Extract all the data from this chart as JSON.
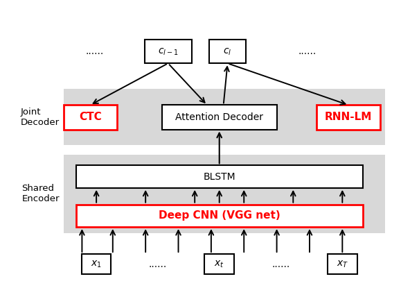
{
  "fig_width": 5.92,
  "fig_height": 4.28,
  "dpi": 100,
  "bg_color": "#ffffff",
  "gray_bg": "#d8d8d8",
  "box_face": "#ffffff",
  "red_edge": "#ff0000",
  "black_edge": "#000000",
  "red_text": "#ff0000",
  "black_text": "#000000",
  "label_joint": "Joint\nDecoder",
  "label_shared": "Shared\nEncoder",
  "label_ctc": "CTC",
  "label_attn": "Attention Decoder",
  "label_rnn": "RNN-LM",
  "label_blstm": "BLSTM",
  "label_cnn": "Deep CNN (VGG net)",
  "label_x1": "$x_1$",
  "label_xt": "$x_t$",
  "label_xT": "$x_T$",
  "label_cl1": "$c_{l-1}$",
  "label_cl": "$c_l$",
  "dots": "......",
  "fontsize_main": 10,
  "fontsize_label": 9.5,
  "fontsize_red": 11
}
